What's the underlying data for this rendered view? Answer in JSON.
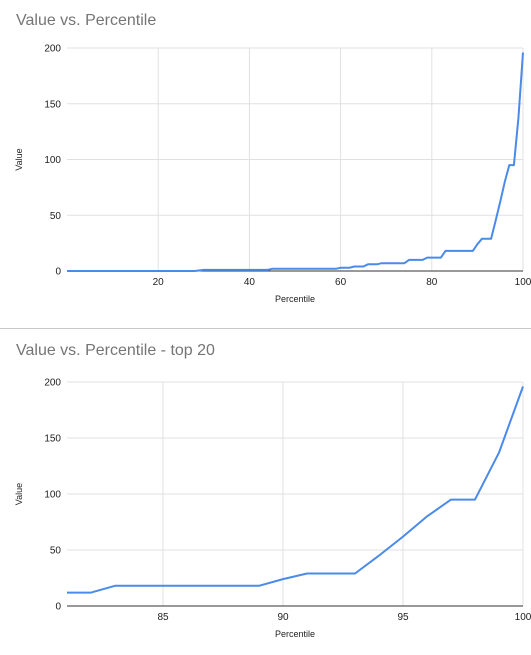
{
  "chart_data": [
    {
      "type": "line",
      "title": "Value vs. Percentile",
      "xlabel": "Percentile",
      "ylabel": "Value",
      "xlim": [
        0,
        100
      ],
      "ylim": [
        0,
        200
      ],
      "xticks": [
        20,
        40,
        60,
        80,
        100
      ],
      "yticks": [
        0,
        50,
        100,
        150,
        200
      ],
      "grid": true,
      "line_color": "#4a8ae8",
      "series": [
        {
          "x": [
            0,
            28,
            30,
            44,
            45,
            59,
            60,
            62,
            63,
            65,
            66,
            68,
            69,
            74,
            75,
            78,
            79,
            82,
            83,
            89,
            90,
            91,
            93,
            94,
            95,
            96,
            97,
            98,
            99,
            100
          ],
          "y": [
            0,
            0,
            1,
            1,
            2,
            2,
            3,
            3,
            4,
            4,
            6,
            6,
            7,
            7,
            10,
            10,
            12,
            12,
            18,
            18,
            24,
            29,
            29,
            45,
            62,
            80,
            95,
            95,
            137,
            196
          ]
        }
      ]
    },
    {
      "type": "line",
      "title": "Value vs. Percentile - top 20",
      "xlabel": "Percentile",
      "ylabel": "Value",
      "xlim": [
        81,
        100
      ],
      "ylim": [
        0,
        200
      ],
      "xticks": [
        85,
        90,
        95,
        100
      ],
      "yticks": [
        0,
        50,
        100,
        150,
        200
      ],
      "grid": true,
      "line_color": "#4a8ae8",
      "series": [
        {
          "x": [
            81,
            82,
            83,
            84,
            85,
            86,
            87,
            88,
            89,
            90,
            91,
            92,
            93,
            94,
            95,
            96,
            97,
            98,
            99,
            100
          ],
          "y": [
            12,
            12,
            18,
            18,
            18,
            18,
            18,
            18,
            18,
            24,
            29,
            29,
            29,
            45,
            62,
            80,
            95,
            95,
            137,
            196
          ]
        }
      ]
    }
  ]
}
